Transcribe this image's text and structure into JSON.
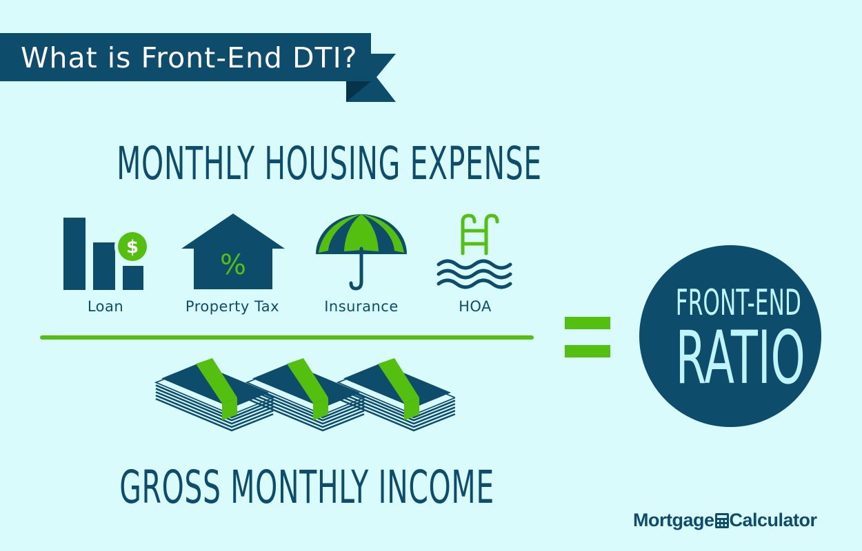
{
  "banner": {
    "title": "What is Front-End DTI?"
  },
  "numerator": {
    "title": "MONTHLY HOUSING EXPENSE",
    "items": [
      {
        "label": "Loan"
      },
      {
        "label": "Property Tax"
      },
      {
        "label": "Insurance"
      },
      {
        "label": "HOA"
      }
    ]
  },
  "denominator": {
    "title": "GROSS MONTHLY INCOME"
  },
  "result": {
    "line1": "FRONT-END",
    "line2": "RATIO"
  },
  "icons": {
    "loan": {
      "symbol": "$"
    },
    "property_tax": {
      "symbol": "%"
    }
  },
  "brand": {
    "word1": "Mortgage",
    "word2": "Calculator"
  },
  "colors": {
    "background": "#d9fbfb",
    "navy": "#0e4c6c",
    "green": "#55bf10",
    "ratio_text": "#bff4fb"
  }
}
